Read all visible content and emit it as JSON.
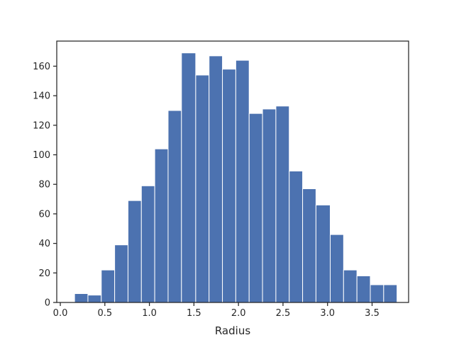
{
  "chart_data": {
    "type": "bar",
    "title": "",
    "xlabel": "Radius",
    "ylabel": "",
    "xlim": [
      -0.04,
      3.91
    ],
    "ylim": [
      0,
      177
    ],
    "grid": false,
    "bar_color": "#4c72b0",
    "edge_color": "#ffffff",
    "x_ticks": [
      {
        "value": 0.0,
        "label": "0.0"
      },
      {
        "value": 0.5,
        "label": "0.5"
      },
      {
        "value": 1.0,
        "label": "1.0"
      },
      {
        "value": 1.5,
        "label": "1.5"
      },
      {
        "value": 2.0,
        "label": "2.0"
      },
      {
        "value": 2.5,
        "label": "2.5"
      },
      {
        "value": 3.0,
        "label": "3.0"
      },
      {
        "value": 3.5,
        "label": "3.5"
      }
    ],
    "y_ticks": [
      {
        "value": 0,
        "label": "0"
      },
      {
        "value": 20,
        "label": "20"
      },
      {
        "value": 40,
        "label": "40"
      },
      {
        "value": 60,
        "label": "60"
      },
      {
        "value": 80,
        "label": "80"
      },
      {
        "value": 100,
        "label": "100"
      },
      {
        "value": 120,
        "label": "120"
      },
      {
        "value": 140,
        "label": "140"
      },
      {
        "value": 160,
        "label": "160"
      }
    ],
    "bins": [
      {
        "left": 0.16,
        "right": 0.31,
        "count": 6
      },
      {
        "left": 0.31,
        "right": 0.46,
        "count": 5
      },
      {
        "left": 0.46,
        "right": 0.61,
        "count": 22
      },
      {
        "left": 0.61,
        "right": 0.76,
        "count": 39
      },
      {
        "left": 0.76,
        "right": 0.91,
        "count": 69
      },
      {
        "left": 0.91,
        "right": 1.06,
        "count": 79
      },
      {
        "left": 1.06,
        "right": 1.21,
        "count": 104
      },
      {
        "left": 1.21,
        "right": 1.36,
        "count": 130
      },
      {
        "left": 1.36,
        "right": 1.52,
        "count": 169
      },
      {
        "left": 1.52,
        "right": 1.67,
        "count": 154
      },
      {
        "left": 1.67,
        "right": 1.82,
        "count": 167
      },
      {
        "left": 1.82,
        "right": 1.97,
        "count": 158
      },
      {
        "left": 1.97,
        "right": 2.12,
        "count": 164
      },
      {
        "left": 2.12,
        "right": 2.27,
        "count": 128
      },
      {
        "left": 2.27,
        "right": 2.42,
        "count": 131
      },
      {
        "left": 2.42,
        "right": 2.57,
        "count": 133
      },
      {
        "left": 2.57,
        "right": 2.72,
        "count": 89
      },
      {
        "left": 2.72,
        "right": 2.87,
        "count": 77
      },
      {
        "left": 2.87,
        "right": 3.03,
        "count": 66
      },
      {
        "left": 3.03,
        "right": 3.18,
        "count": 46
      },
      {
        "left": 3.18,
        "right": 3.33,
        "count": 22
      },
      {
        "left": 3.33,
        "right": 3.48,
        "count": 18
      },
      {
        "left": 3.48,
        "right": 3.63,
        "count": 12
      },
      {
        "left": 3.63,
        "right": 3.78,
        "count": 12
      }
    ]
  }
}
